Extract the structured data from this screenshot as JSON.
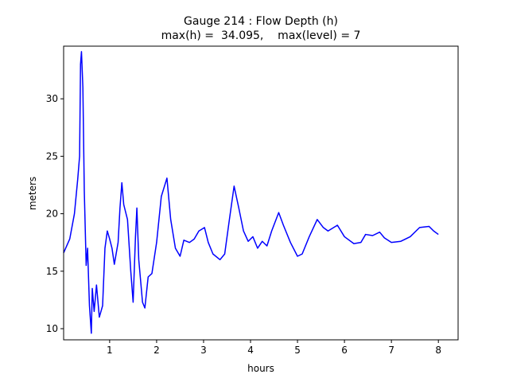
{
  "chart_data": {
    "type": "line",
    "title": "Gauge 214 : Flow Depth (h)",
    "subtitle": "max(h) =  34.095,    max(level) = 7",
    "x_label": "hours",
    "y_label": "meters",
    "xlim": [
      0.02,
      8.42
    ],
    "ylim": [
      9.03,
      34.58
    ],
    "xticks": [
      1,
      2,
      3,
      4,
      5,
      6,
      7,
      8
    ],
    "yticks": [
      10,
      15,
      20,
      25,
      30
    ],
    "grid": false,
    "series": [
      {
        "name": "h",
        "color": "#0000ff",
        "x": [
          0.02,
          0.15,
          0.25,
          0.32,
          0.36,
          0.38,
          0.4,
          0.43,
          0.46,
          0.5,
          0.53,
          0.57,
          0.61,
          0.63,
          0.67,
          0.72,
          0.78,
          0.85,
          0.9,
          0.95,
          1.0,
          1.05,
          1.1,
          1.18,
          1.22,
          1.26,
          1.3,
          1.38,
          1.45,
          1.5,
          1.55,
          1.58,
          1.62,
          1.7,
          1.75,
          1.82,
          1.9,
          2.0,
          2.1,
          2.22,
          2.3,
          2.4,
          2.5,
          2.58,
          2.7,
          2.8,
          2.9,
          3.02,
          3.1,
          3.2,
          3.35,
          3.45,
          3.55,
          3.65,
          3.75,
          3.85,
          3.95,
          4.05,
          4.15,
          4.25,
          4.35,
          4.45,
          4.6,
          4.7,
          4.85,
          5.0,
          5.1,
          5.25,
          5.42,
          5.55,
          5.65,
          5.85,
          6.0,
          6.2,
          6.35,
          6.45,
          6.6,
          6.75,
          6.85,
          7.0,
          7.2,
          7.4,
          7.6,
          7.8,
          7.9,
          8.0
        ],
        "values": [
          16.6,
          17.8,
          20,
          23,
          25,
          33,
          34.1,
          31,
          22,
          15.5,
          17,
          12,
          9.6,
          13.5,
          11.5,
          13.8,
          11,
          12,
          17,
          18.5,
          17.8,
          17,
          15.6,
          17.5,
          20.5,
          22.7,
          20.8,
          19.5,
          15,
          12.3,
          18,
          20.5,
          16,
          12.3,
          11.8,
          14.5,
          14.8,
          17.5,
          21.5,
          23.1,
          19.5,
          17,
          16.3,
          17.7,
          17.5,
          17.8,
          18.5,
          18.8,
          17.5,
          16.5,
          16,
          16.5,
          19.5,
          22.4,
          20.5,
          18.5,
          17.6,
          18,
          17,
          17.6,
          17.2,
          18.5,
          20.1,
          19,
          17.5,
          16.3,
          16.5,
          18,
          19.5,
          18.8,
          18.5,
          19,
          18,
          17.4,
          17.5,
          18.2,
          18.1,
          18.4,
          17.9,
          17.5,
          17.6,
          18,
          18.8,
          18.9,
          18.5,
          18.2
        ]
      }
    ]
  }
}
